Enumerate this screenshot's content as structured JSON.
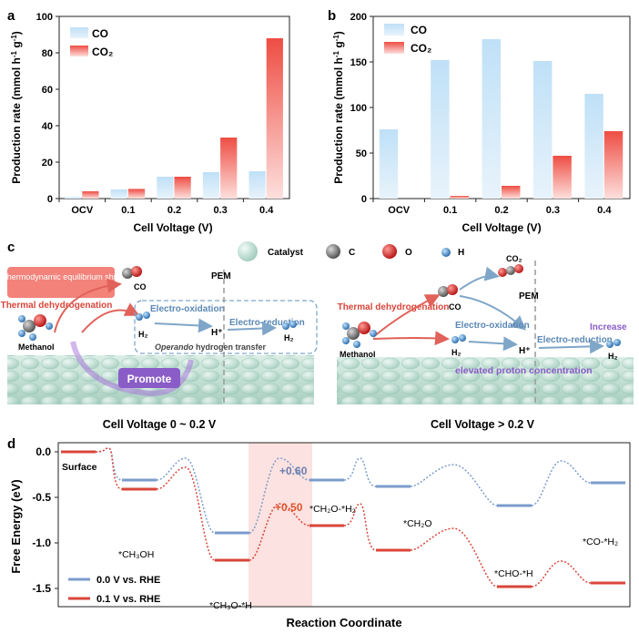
{
  "colors": {
    "co_bar": "#a9d3f2",
    "co2_bar": "#f05a4f",
    "line_00": "#7b9ccc",
    "line_01": "#d9453a",
    "highlight": "#fbd6d3",
    "ground": "#cfe5dc",
    "bubble": "#b8dccf"
  },
  "panel_labels": {
    "a": "a",
    "b": "b",
    "c": "c",
    "d": "d"
  },
  "chart_data": [
    {
      "id": "a",
      "type": "bar",
      "title": "",
      "xlabel": "Cell Voltage (V)",
      "ylabel": "Production rate (mmol h-1 g-1)",
      "categories": [
        "OCV",
        "0.1",
        "0.2",
        "0.3",
        "0.4"
      ],
      "series": [
        {
          "name": "CO",
          "values": [
            0.8,
            5,
            12,
            14.5,
            15
          ]
        },
        {
          "name": "CO2",
          "values": [
            4,
            5.3,
            12,
            33.5,
            88
          ]
        }
      ],
      "ylim": [
        0,
        100
      ],
      "yticks": [
        0,
        20,
        40,
        60,
        80,
        100
      ],
      "legend": [
        "CO",
        "CO₂"
      ],
      "legend_position": "top-left"
    },
    {
      "id": "b",
      "type": "bar",
      "title": "",
      "xlabel": "Cell Voltage (V)",
      "ylabel": "Production rate (mmol h-1 g-1)",
      "categories": [
        "OCV",
        "0.1",
        "0.2",
        "0.3",
        "0.4"
      ],
      "series": [
        {
          "name": "CO",
          "values": [
            76,
            152,
            175,
            151,
            115
          ]
        },
        {
          "name": "CO2",
          "values": [
            0,
            3,
            14,
            47,
            74
          ]
        }
      ],
      "ylim": [
        0,
        200
      ],
      "yticks": [
        0,
        50,
        100,
        150,
        200
      ],
      "legend": [
        "CO",
        "CO₂"
      ],
      "legend_position": "top-right"
    },
    {
      "id": "d",
      "type": "line",
      "title": "",
      "xlabel": "Reaction Coordinate",
      "ylabel": "Free Energy (eV)",
      "states": [
        "Surface",
        "*CH₃OH",
        "*CH₃O-*H",
        "*CH₂O-*H₂",
        "*CH₂O",
        "*CHO-*H",
        "*CO-*H₂"
      ],
      "series": [
        {
          "name": "0.0 V vs. RHE",
          "values": [
            0.0,
            -0.31,
            -0.89,
            -0.31,
            -0.38,
            -0.59,
            -0.34
          ]
        },
        {
          "name": "0.1 V vs. RHE",
          "values": [
            0.0,
            -0.41,
            -1.19,
            -0.81,
            -1.08,
            -1.48,
            -1.44
          ]
        }
      ],
      "ylim": [
        -1.7,
        0.1
      ],
      "yticks": [
        "0.0",
        "-0.5",
        "-1.0",
        "-1.5"
      ],
      "annotations": [
        "+0.60",
        "+0.50"
      ],
      "legend_position": "bottom-left"
    }
  ],
  "panel_c": {
    "legend": {
      "catalyst": "Catalyst",
      "c": "C",
      "o": "O",
      "h": "H"
    },
    "left": {
      "thermo_box": "Thermodynamic equilibrium shift",
      "thermal": "Thermal dehydrogenation",
      "methanol": "Methanol",
      "co": "CO",
      "h2": "H₂",
      "pem": "PEM",
      "electro_oxidation": "Electro-oxidation",
      "electro_reduction": "Electro-reduction",
      "h_plus": "H⁺",
      "h2_out": "H₂",
      "operando_italic": "Operando",
      "operando_rest": " hydrogen transfer",
      "promote": "Promote",
      "caption": "Cell Voltage 0 ~ 0.2 V"
    },
    "right": {
      "co2": "CO₂",
      "pem": "PEM",
      "co": "CO",
      "thermal": "Thermal dehydrogenation",
      "methanol": "Methanol",
      "electro_oxidation": "Electro-oxidation",
      "h2": "H₂",
      "h_plus": "H⁺",
      "electro_reduction": "Electro-reduction",
      "increase": "Increase",
      "h2_out": "H₂",
      "elevated": "elevated proton concentration",
      "caption": "Cell Voltage > 0.2 V"
    }
  }
}
